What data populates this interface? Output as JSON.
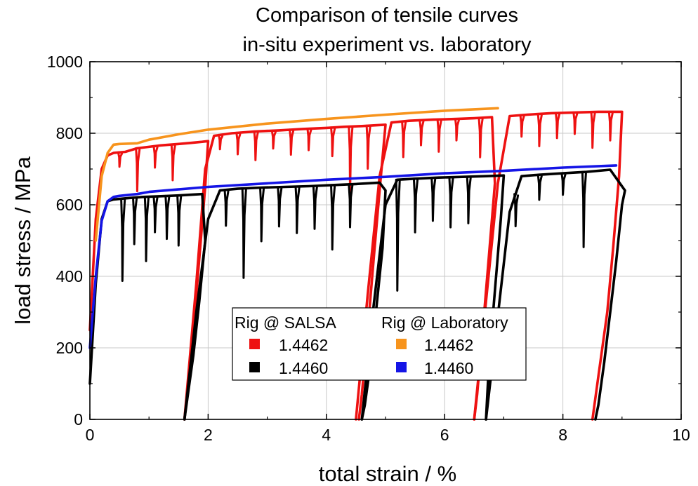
{
  "chart_data": {
    "type": "line",
    "title": [
      "Comparison of tensile curves",
      "in-situ experiment vs. laboratory"
    ],
    "xlabel": "total strain / %",
    "ylabel": "load stress / MPa",
    "xlim": [
      0,
      10
    ],
    "ylim": [
      0,
      1000
    ],
    "xticks": [
      0,
      2,
      4,
      6,
      8,
      10
    ],
    "yticks": [
      0,
      200,
      400,
      600,
      800,
      1000
    ],
    "grid": true,
    "legend": {
      "placement": "lower-center",
      "groups": [
        {
          "title": "Rig @ SALSA",
          "entries": [
            {
              "label": "1.4462",
              "color": "#ee1111"
            },
            {
              "label": "1.4460",
              "color": "#000000"
            }
          ]
        },
        {
          "title": "Rig @ Laboratory",
          "entries": [
            {
              "label": "1.4462",
              "color": "#f7941d"
            },
            {
              "label": "1.4460",
              "color": "#1515e6"
            }
          ]
        }
      ]
    },
    "series": [
      {
        "group": "Rig @ Laboratory",
        "label": "1.4462",
        "color": "#f7941d",
        "x": [
          0.1,
          0.2,
          0.3,
          0.4,
          0.5,
          0.8,
          1.0,
          1.5,
          2.0,
          3.0,
          4.0,
          5.0,
          6.0,
          6.9
        ],
        "y": [
          500,
          680,
          745,
          768,
          770,
          772,
          782,
          797,
          810,
          827,
          840,
          852,
          863,
          870
        ]
      },
      {
        "group": "Rig @ Laboratory",
        "label": "1.4460",
        "color": "#1515e6",
        "x": [
          0.0,
          0.1,
          0.2,
          0.3,
          0.4,
          0.5,
          0.8,
          1.0,
          2.0,
          3.0,
          4.0,
          5.0,
          6.0,
          7.0,
          8.0,
          8.9
        ],
        "y": [
          200,
          400,
          555,
          610,
          622,
          625,
          630,
          636,
          650,
          660,
          670,
          678,
          688,
          695,
          704,
          710
        ]
      },
      {
        "group": "Rig @ SALSA",
        "label": "1.4462",
        "color": "#ee1111",
        "segments": [
          {
            "x": [
              0.0,
              0.1,
              0.2,
              0.3,
              0.4,
              0.6,
              0.8,
              1.0,
              1.2,
              1.5,
              1.7,
              1.9,
              2.0,
              1.95,
              1.85,
              1.75,
              1.65,
              1.6
            ],
            "y": [
              250,
              560,
              700,
              738,
              745,
              748,
              758,
              762,
              766,
              770,
              773,
              776,
              778,
              650,
              450,
              250,
              80,
              0
            ]
          },
          {
            "x": [
              1.6,
              1.8,
              1.95,
              2.1,
              2.4,
              2.8,
              3.2,
              3.6,
              4.0,
              4.3,
              4.6,
              4.9,
              5.0,
              4.9,
              4.8,
              4.7,
              4.6,
              4.55
            ],
            "y": [
              0,
              380,
              700,
              793,
              800,
              805,
              808,
              812,
              815,
              818,
              820,
              823,
              824,
              640,
              450,
              250,
              70,
              0
            ]
          },
          {
            "x": [
              4.5,
              4.7,
              4.9,
              5.1,
              5.4,
              5.8,
              6.2,
              6.5,
              6.8,
              6.85,
              6.75,
              6.65,
              6.55,
              6.5
            ],
            "y": [
              0,
              350,
              680,
              830,
              835,
              838,
              840,
              842,
              845,
              660,
              460,
              260,
              70,
              0
            ]
          },
          {
            "x": [
              6.5,
              6.7,
              6.9,
              7.1,
              7.4,
              7.8,
              8.2,
              8.6,
              9.0,
              8.95,
              8.85,
              8.75,
              8.6,
              8.5
            ],
            "y": [
              0,
              330,
              660,
              848,
              852,
              856,
              858,
              860,
              860,
              680,
              480,
              300,
              120,
              0
            ]
          }
        ],
        "dips_x": [
          0.5,
          0.8,
          1.1,
          1.4,
          2.2,
          2.5,
          2.8,
          3.1,
          3.4,
          3.7,
          4.1,
          4.4,
          4.7,
          5.3,
          5.6,
          5.9,
          6.2,
          6.6,
          7.3,
          7.6,
          7.9,
          8.2,
          8.5,
          8.8
        ],
        "dips_depth": [
          40,
          120,
          60,
          100,
          40,
          60,
          80,
          50,
          70,
          60,
          80,
          190,
          120,
          100,
          70,
          90,
          60,
          110,
          60,
          90,
          70,
          60,
          100,
          80
        ]
      },
      {
        "group": "Rig @ SALSA",
        "label": "1.4460",
        "color": "#000000",
        "segments": [
          {
            "x": [
              0.0,
              0.1,
              0.2,
              0.3,
              0.4,
              0.6,
              0.9,
              1.2,
              1.5,
              1.7,
              1.9,
              1.95,
              1.85,
              1.75,
              1.65,
              1.6
            ],
            "y": [
              100,
              380,
              560,
              610,
              615,
              618,
              622,
              624,
              626,
              628,
              630,
              500,
              330,
              180,
              60,
              0
            ]
          },
          {
            "x": [
              1.6,
              1.8,
              2.0,
              2.2,
              2.5,
              2.9,
              3.3,
              3.7,
              4.1,
              4.5,
              4.9,
              5.0,
              4.95,
              4.85,
              4.75,
              4.65,
              4.6
            ],
            "y": [
              0,
              300,
              560,
              640,
              645,
              648,
              650,
              652,
              655,
              658,
              662,
              640,
              480,
              320,
              160,
              40,
              0
            ]
          },
          {
            "x": [
              4.6,
              4.8,
              5.0,
              5.2,
              5.5,
              5.9,
              6.3,
              6.7,
              7.0,
              6.95,
              6.85,
              6.75,
              6.7
            ],
            "y": [
              0,
              320,
              600,
              670,
              673,
              676,
              678,
              680,
              682,
              560,
              360,
              160,
              0
            ]
          },
          {
            "x": [
              6.7,
              6.9,
              7.1,
              7.3,
              7.6,
              8.0,
              8.4,
              8.8,
              9.05,
              9.0,
              8.9,
              8.8,
              8.7,
              8.6,
              8.55
            ],
            "y": [
              0,
              290,
              580,
              680,
              684,
              688,
              692,
              698,
              640,
              600,
              440,
              300,
              160,
              40,
              0
            ]
          }
        ],
        "dips_x": [
          0.55,
          0.75,
          0.95,
          1.1,
          1.3,
          1.5,
          2.3,
          2.6,
          2.9,
          3.2,
          3.5,
          3.8,
          4.1,
          4.4,
          5.2,
          5.5,
          5.8,
          6.1,
          6.4,
          7.2,
          7.6,
          8.0,
          8.35
        ],
        "dips_depth": [
          230,
          130,
          180,
          100,
          120,
          140,
          100,
          250,
          150,
          110,
          130,
          120,
          180,
          120,
          310,
          150,
          120,
          140,
          130,
          90,
          70,
          60,
          210
        ]
      }
    ]
  }
}
